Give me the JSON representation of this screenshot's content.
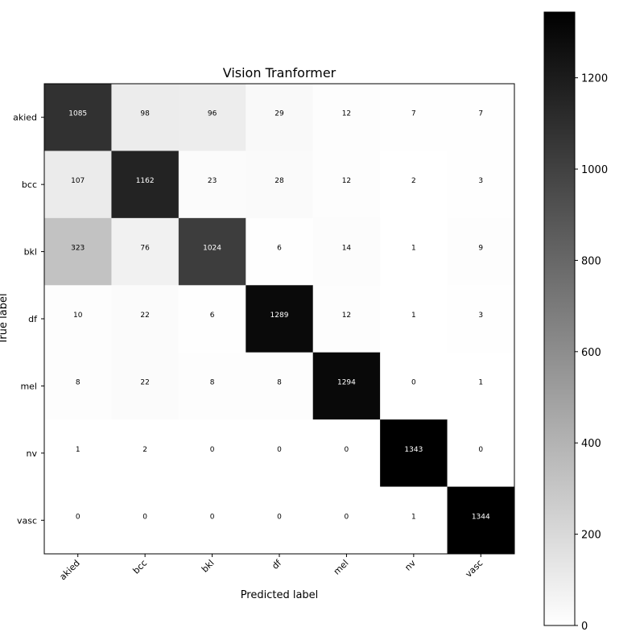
{
  "chart_data": {
    "type": "heatmap",
    "title": "Vision Tranformer",
    "xlabel": "Predicted label",
    "ylabel": "True label",
    "x_categories": [
      "akied",
      "bcc",
      "bkl",
      "df",
      "mel",
      "nv",
      "vasc"
    ],
    "y_categories": [
      "akied",
      "bcc",
      "bkl",
      "df",
      "mel",
      "nv",
      "vasc"
    ],
    "matrix": [
      [
        1085,
        98,
        96,
        29,
        12,
        7,
        7
      ],
      [
        107,
        1162,
        23,
        28,
        12,
        2,
        3
      ],
      [
        323,
        76,
        1024,
        6,
        14,
        1,
        9
      ],
      [
        10,
        22,
        6,
        1289,
        12,
        1,
        3
      ],
      [
        8,
        22,
        8,
        8,
        1294,
        0,
        1
      ],
      [
        1,
        2,
        0,
        0,
        0,
        1343,
        0
      ],
      [
        0,
        0,
        0,
        0,
        0,
        1,
        1344
      ]
    ],
    "colormap": "Greys",
    "color_range": [
      0,
      1344
    ],
    "colorbar_ticks": [
      0,
      200,
      400,
      600,
      800,
      1000,
      1200
    ],
    "grid": false,
    "legend": "colorbar-right"
  }
}
